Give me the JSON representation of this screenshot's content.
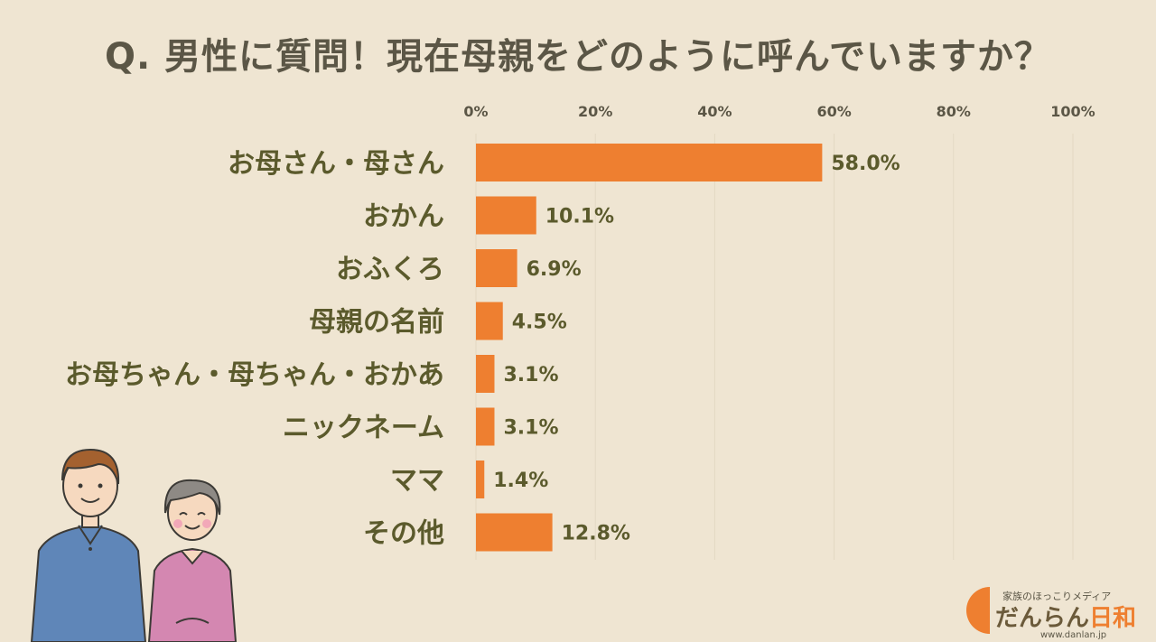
{
  "title": "Q. 男性に質問！現在母親をどのように呼んでいますか？",
  "colors": {
    "bar": "#ee7f30",
    "background": "#efe5d2",
    "grid": "#e3d8c3"
  },
  "chart_data": {
    "type": "bar",
    "orientation": "horizontal",
    "categories": [
      "お母さん・母さん",
      "おかん",
      "おふくろ",
      "母親の名前",
      "お母ちゃん・母ちゃん・おかあ",
      "ニックネーム",
      "ママ",
      "その他"
    ],
    "values": [
      58.0,
      10.1,
      6.9,
      4.5,
      3.1,
      3.1,
      1.4,
      12.8
    ],
    "value_labels": [
      "58.0%",
      "10.1%",
      "6.9%",
      "4.5%",
      "3.1%",
      "3.1%",
      "1.4%",
      "12.8%"
    ],
    "xticks": [
      "0%",
      "20%",
      "40%",
      "60%",
      "80%",
      "100%"
    ],
    "xlim": [
      0,
      100
    ],
    "grid": true,
    "axis_position": "top"
  },
  "logo": {
    "tagline": "家族のほっこりメディア",
    "name_main": "だんらん",
    "name_accent": "日和",
    "url": "www.danlan.jp"
  }
}
